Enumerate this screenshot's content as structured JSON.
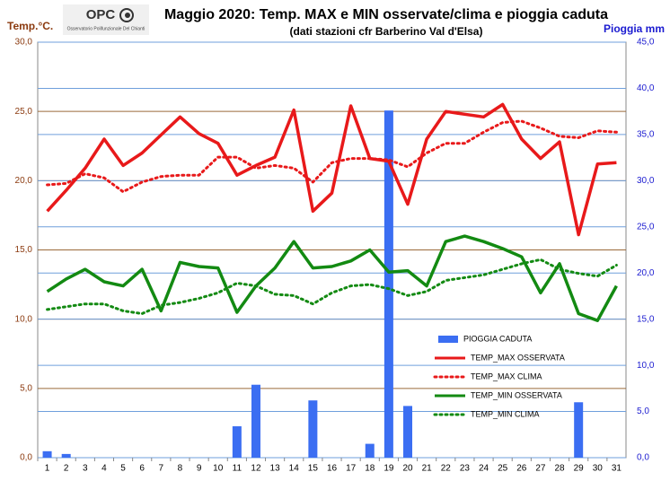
{
  "logo": {
    "title": "OPC",
    "subtitle": "Osservatorio Polifunzionale Del Chianti"
  },
  "chart_data": {
    "type": "combo",
    "title": "Maggio 2020: Temp. MAX e MIN osservate/clima e pioggia caduta",
    "subtitle": "(dati stazioni cfr Barberino Val d'Elsa)",
    "y_label": "Temp.°C.",
    "y2_label": "Pioggia mm",
    "categories": [
      "1",
      "2",
      "3",
      "4",
      "5",
      "6",
      "7",
      "8",
      "9",
      "10",
      "11",
      "12",
      "13",
      "14",
      "15",
      "16",
      "17",
      "18",
      "19",
      "20",
      "21",
      "22",
      "23",
      "24",
      "25",
      "26",
      "27",
      "28",
      "29",
      "30",
      "31"
    ],
    "ylim": [
      0,
      30
    ],
    "yticks": [
      {
        "value": 0,
        "label": "0,0"
      },
      {
        "value": 5,
        "label": "5,0"
      },
      {
        "value": 10,
        "label": "10,0"
      },
      {
        "value": 15,
        "label": "15,0"
      },
      {
        "value": 20,
        "label": "20,0"
      },
      {
        "value": 25,
        "label": "25,0"
      },
      {
        "value": 30,
        "label": "30,0"
      }
    ],
    "y2lim": [
      0,
      45
    ],
    "y2ticks": [
      {
        "value": 0,
        "label": "0,0"
      },
      {
        "value": 5,
        "label": "5,0"
      },
      {
        "value": 10,
        "label": "10,0"
      },
      {
        "value": 15,
        "label": "15,0"
      },
      {
        "value": 20,
        "label": "20,0"
      },
      {
        "value": 25,
        "label": "25,0"
      },
      {
        "value": 30,
        "label": "30,0"
      },
      {
        "value": 35,
        "label": "35,0"
      },
      {
        "value": 40,
        "label": "40,0"
      },
      {
        "value": 45,
        "label": "45,0"
      }
    ],
    "grid": true,
    "legend": "right",
    "series": [
      {
        "name": "PIOGGIA CADUTA",
        "type": "bar",
        "axis": "y2",
        "color": "#3b6ef2",
        "values": [
          0.7,
          0.4,
          0,
          0,
          0,
          0,
          0,
          0,
          0,
          0,
          3.4,
          7.9,
          0,
          0,
          6.2,
          0,
          0,
          1.5,
          37.6,
          5.6,
          0,
          0,
          0,
          0,
          0,
          0,
          0,
          0,
          6.0,
          0,
          0
        ]
      },
      {
        "name": "TEMP_MAX OSSERVATA",
        "type": "line",
        "color": "#e8191a",
        "style": "solid",
        "values": [
          17.8,
          19.3,
          20.9,
          23.0,
          21.1,
          22.0,
          23.3,
          24.6,
          23.4,
          22.7,
          20.4,
          21.1,
          21.7,
          25.1,
          17.8,
          19.1,
          25.4,
          21.6,
          21.4,
          18.3,
          23.0,
          25.0,
          24.8,
          24.6,
          25.5,
          23.0,
          21.6,
          22.8,
          16.1,
          21.2,
          21.3
        ]
      },
      {
        "name": "TEMP_MAX CLIMA",
        "type": "line",
        "color": "#e8191a",
        "style": "dotted",
        "values": [
          19.7,
          19.8,
          20.5,
          20.2,
          19.2,
          19.9,
          20.3,
          20.4,
          20.4,
          21.7,
          21.7,
          20.9,
          21.1,
          20.9,
          19.9,
          21.3,
          21.6,
          21.6,
          21.5,
          21.0,
          22.0,
          22.7,
          22.7,
          23.5,
          24.2,
          24.3,
          23.8,
          23.2,
          23.1,
          23.6,
          23.5
        ]
      },
      {
        "name": "TEMP_MIN OSSERVATA",
        "type": "line",
        "color": "#138a12",
        "style": "solid",
        "values": [
          12.0,
          12.9,
          13.6,
          12.7,
          12.4,
          13.6,
          10.6,
          14.1,
          13.8,
          13.7,
          10.5,
          12.4,
          13.7,
          15.6,
          13.7,
          13.8,
          14.2,
          15.0,
          13.4,
          13.5,
          12.4,
          15.6,
          16.0,
          15.6,
          15.1,
          14.5,
          11.9,
          14.0,
          10.4,
          9.9,
          12.4
        ]
      },
      {
        "name": "TEMP_MIN CLIMA",
        "type": "line",
        "color": "#138a12",
        "style": "dotted",
        "values": [
          10.7,
          10.9,
          11.1,
          11.1,
          10.6,
          10.4,
          11.0,
          11.2,
          11.5,
          11.9,
          12.6,
          12.4,
          11.8,
          11.7,
          11.1,
          11.9,
          12.4,
          12.5,
          12.2,
          11.7,
          12.0,
          12.8,
          13.0,
          13.2,
          13.6,
          14.0,
          14.3,
          13.6,
          13.3,
          13.1,
          13.9
        ]
      }
    ]
  }
}
